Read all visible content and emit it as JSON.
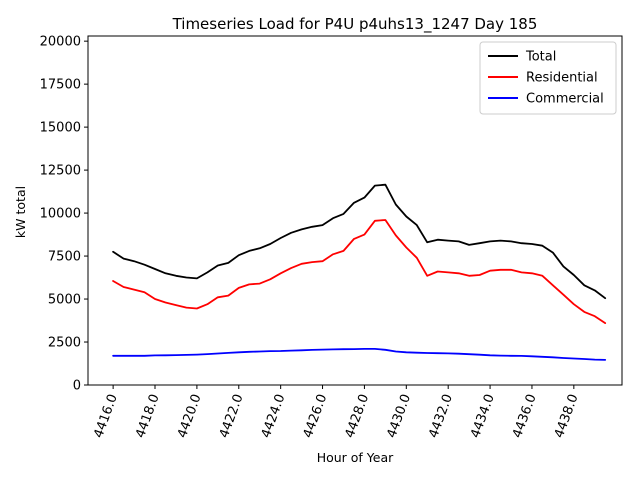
{
  "chart_data": {
    "type": "line",
    "title": "Timeseries Load for P4U p4uhs13_1247  Day 185",
    "xlabel": "Hour of Year",
    "ylabel": "kW total",
    "xlim": [
      4414.8,
      4440.3
    ],
    "ylim": [
      0,
      20300
    ],
    "xticks": [
      4416,
      4418,
      4420,
      4422,
      4424,
      4426,
      4428,
      4430,
      4432,
      4434,
      4436,
      4438
    ],
    "xtick_labels": [
      "4416.0",
      "4418.0",
      "4420.0",
      "4422.0",
      "4424.0",
      "4426.0",
      "4428.0",
      "4430.0",
      "4432.0",
      "4434.0",
      "4436.0",
      "4438.0"
    ],
    "yticks": [
      0,
      2500,
      5000,
      7500,
      10000,
      12500,
      15000,
      17500,
      20000
    ],
    "ytick_labels": [
      "0",
      "2500",
      "5000",
      "7500",
      "10000",
      "12500",
      "15000",
      "17500",
      "20000"
    ],
    "legend_position": "top-right",
    "x": [
      4416,
      4416.5,
      4417,
      4417.5,
      4418,
      4418.5,
      4419,
      4419.5,
      4420,
      4420.5,
      4421,
      4421.5,
      4422,
      4422.5,
      4423,
      4423.5,
      4424,
      4424.5,
      4425,
      4425.5,
      4426,
      4426.5,
      4427,
      4427.5,
      4428,
      4428.5,
      4429,
      4429.5,
      4430,
      4430.5,
      4431,
      4431.5,
      4432,
      4432.5,
      4433,
      4433.5,
      4434,
      4434.5,
      4435,
      4435.5,
      4436,
      4436.5,
      4437,
      4437.5,
      4438,
      4438.5,
      4439,
      4439.5
    ],
    "series": [
      {
        "name": "Total",
        "color": "#000000",
        "values": [
          7750,
          7350,
          7200,
          7000,
          6750,
          6500,
          6350,
          6250,
          6200,
          6550,
          6950,
          7100,
          7550,
          7800,
          7950,
          8200,
          8550,
          8850,
          9050,
          9200,
          9300,
          9700,
          9950,
          10600,
          10900,
          11600,
          11650,
          10500,
          9800,
          9300,
          8300,
          8450,
          8400,
          8350,
          8150,
          8250,
          8350,
          8400,
          8350,
          8250,
          8200,
          8100,
          7700,
          6900,
          6400,
          5800,
          5500,
          5050
        ]
      },
      {
        "name": "Residential",
        "color": "#ff0000",
        "values": [
          6050,
          5700,
          5550,
          5400,
          5000,
          4800,
          4650,
          4500,
          4450,
          4700,
          5100,
          5200,
          5650,
          5850,
          5900,
          6150,
          6500,
          6800,
          7050,
          7150,
          7200,
          7600,
          7800,
          8500,
          8750,
          9550,
          9600,
          8700,
          8000,
          7400,
          6350,
          6600,
          6550,
          6500,
          6350,
          6400,
          6650,
          6700,
          6700,
          6550,
          6500,
          6350,
          5800,
          5250,
          4700,
          4250,
          4000,
          3600
        ]
      },
      {
        "name": "Commercial",
        "color": "#0000ff",
        "values": [
          1700,
          1700,
          1700,
          1700,
          1720,
          1730,
          1740,
          1750,
          1770,
          1800,
          1830,
          1870,
          1900,
          1930,
          1950,
          1970,
          1980,
          2000,
          2020,
          2040,
          2060,
          2070,
          2080,
          2090,
          2100,
          2100,
          2050,
          1950,
          1900,
          1880,
          1860,
          1850,
          1840,
          1820,
          1790,
          1760,
          1730,
          1710,
          1700,
          1690,
          1670,
          1640,
          1610,
          1570,
          1540,
          1510,
          1480,
          1460
        ]
      }
    ]
  }
}
